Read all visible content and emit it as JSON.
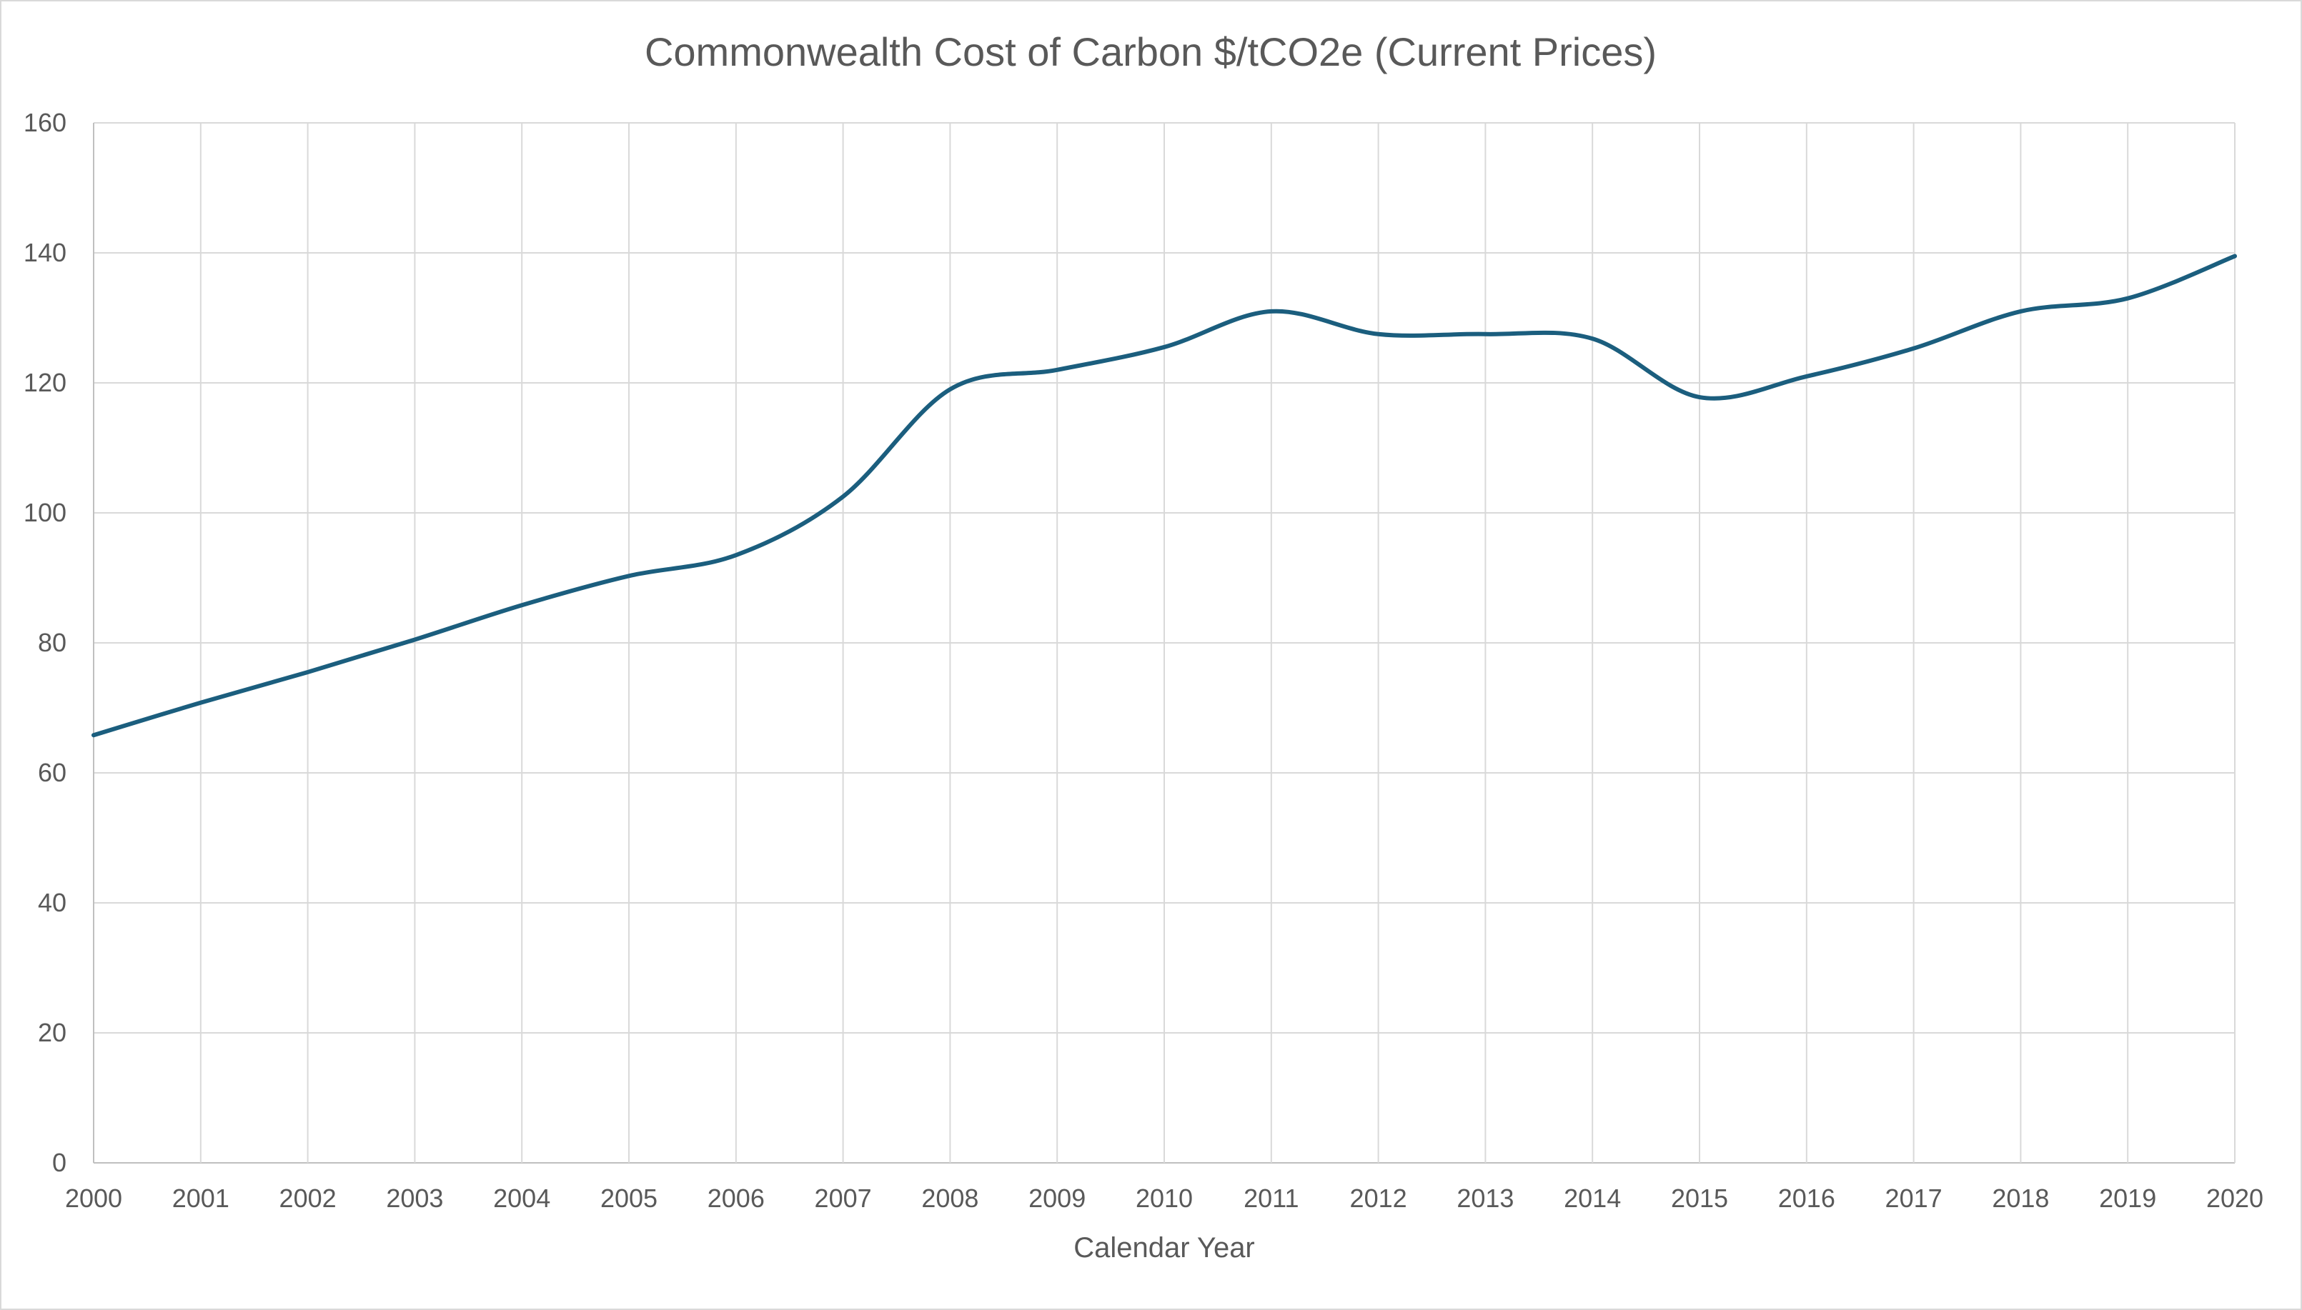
{
  "chart_data": {
    "type": "line",
    "title": "Commonwealth Cost of Carbon $/tCO2e (Current Prices)",
    "xlabel": "Calendar Year",
    "ylabel": "",
    "x": [
      "2000",
      "2001",
      "2002",
      "2003",
      "2004",
      "2005",
      "2006",
      "2007",
      "2008",
      "2009",
      "2010",
      "2011",
      "2012",
      "2013",
      "2014",
      "2015",
      "2016",
      "2017",
      "2018",
      "2019",
      "2020"
    ],
    "series": [
      {
        "values": [
          65.8,
          70.8,
          75.5,
          80.5,
          85.8,
          90.3,
          93.5,
          102.5,
          119.0,
          122.0,
          125.5,
          131.0,
          127.5,
          127.5,
          126.8,
          117.8,
          121.0,
          125.3,
          131.0,
          133.0,
          139.5
        ],
        "color": "#1b5e7e"
      }
    ],
    "ylim": [
      0,
      160
    ],
    "yticks": [
      "0",
      "20",
      "40",
      "60",
      "80",
      "100",
      "120",
      "140",
      "160"
    ],
    "grid": true,
    "legend": "none",
    "smooth": true
  }
}
